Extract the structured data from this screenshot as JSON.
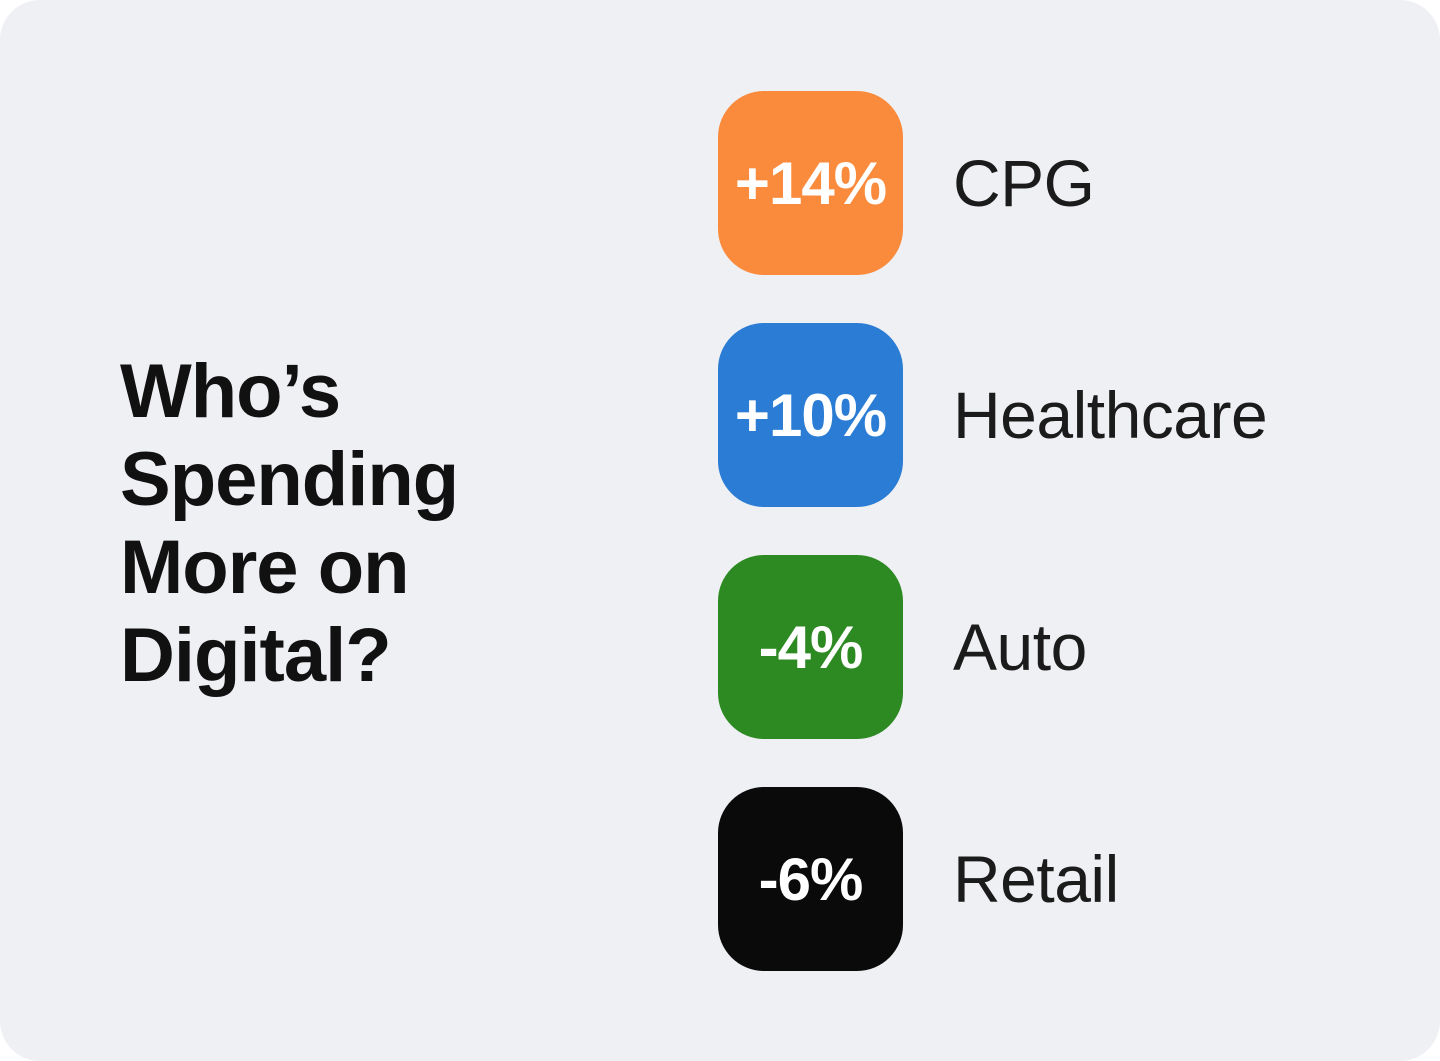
{
  "card": {
    "background": "#EFF0F4",
    "page_background": "#FFFFFF"
  },
  "title": {
    "text": "Who’s Spending More on Digital?",
    "lines": [
      "Who’s",
      "Spending",
      "More on",
      "Digital?"
    ],
    "color": "#111111"
  },
  "stats": [
    {
      "value": "+14%",
      "label": "CPG",
      "color": "#FA8B3D"
    },
    {
      "value": "+10%",
      "label": "Healthcare",
      "color": "#2A7CD4"
    },
    {
      "value": "-4%",
      "label": "Auto",
      "color": "#2D8A23"
    },
    {
      "value": "-6%",
      "label": "Retail",
      "color": "#0A0A0A"
    }
  ],
  "value_text_color": "#FFFFFF",
  "label_color": "#1B1B1B",
  "chart_data": {
    "type": "table",
    "title": "Who’s Spending More on Digital?",
    "categories": [
      "CPG",
      "Healthcare",
      "Auto",
      "Retail"
    ],
    "values": [
      14,
      10,
      -4,
      -6
    ],
    "value_labels": [
      "+14%",
      "+10%",
      "-4%",
      "-6%"
    ],
    "unit": "percent change in digital spending",
    "colors": [
      "#FA8B3D",
      "#2A7CD4",
      "#2D8A23",
      "#0A0A0A"
    ],
    "legend_position": "none",
    "grid": false
  }
}
